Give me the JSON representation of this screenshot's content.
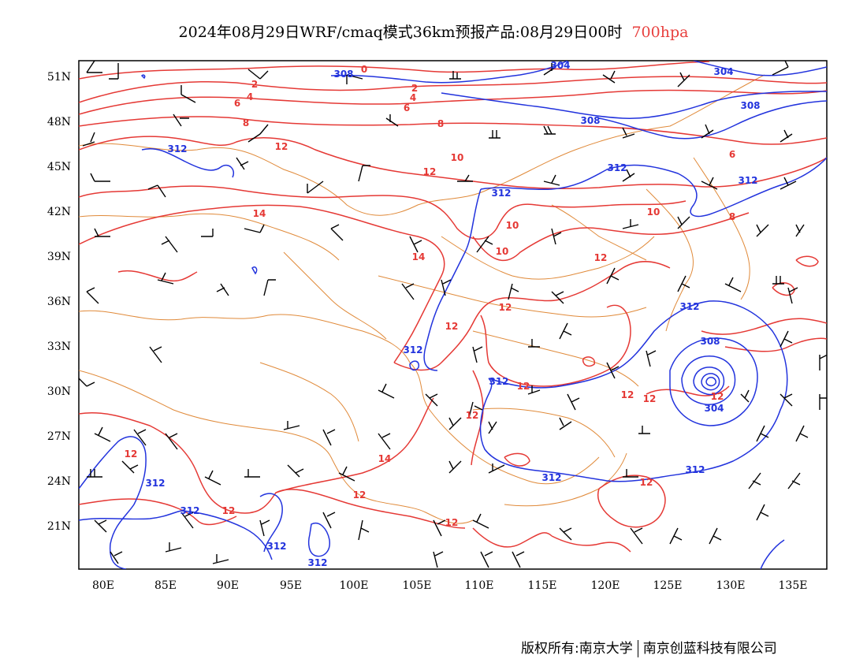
{
  "title": {
    "main": "2024年08月29日WRF/cmaq模式36km预报产品:08月29日00时",
    "level": "700hpa"
  },
  "axes": {
    "lat_labels": [
      "51N",
      "48N",
      "45N",
      "42N",
      "39N",
      "36N",
      "33N",
      "30N",
      "27N",
      "24N",
      "21N"
    ],
    "lon_labels": [
      "80E",
      "85E",
      "90E",
      "95E",
      "100E",
      "105E",
      "110E",
      "115E",
      "120E",
      "125E",
      "130E",
      "135E"
    ]
  },
  "colors": {
    "geopotential": "#2233dd",
    "temperature": "#e53935",
    "boundary": "#e08a3a",
    "wind": "#000000"
  },
  "contour_labels": {
    "temperature": [
      "0",
      "2",
      "4",
      "6",
      "8",
      "12",
      "10",
      "12",
      "14",
      "14",
      "10",
      "10",
      "12",
      "12",
      "12",
      "12",
      "12",
      "12",
      "12",
      "14",
      "12",
      "12",
      "12",
      "12",
      "10",
      "6",
      "8",
      "2",
      "4",
      "6",
      "8",
      "12"
    ],
    "geopotential": [
      "308",
      "304",
      "304",
      "308",
      "308",
      "312",
      "312",
      "312",
      "312",
      "312",
      "312",
      "312",
      "312",
      "312",
      "308",
      "304",
      "312",
      "312",
      "312"
    ]
  },
  "credit": {
    "left": "版权所有:南京大学",
    "right": "南京创蓝科技有限公司"
  }
}
